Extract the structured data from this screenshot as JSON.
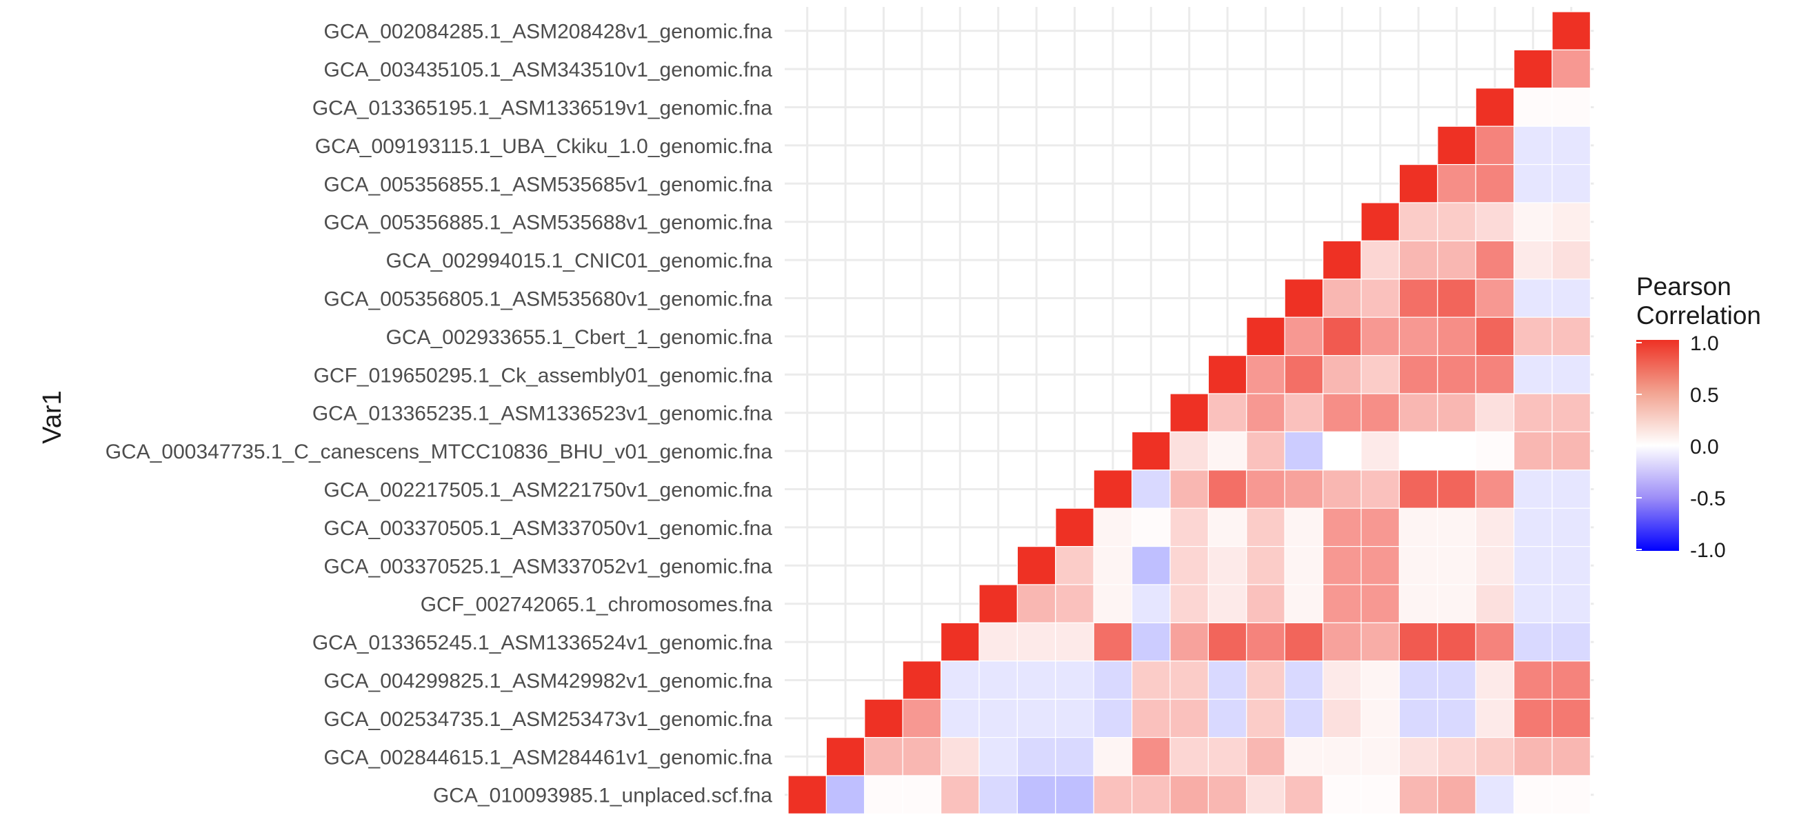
{
  "chart_data": {
    "type": "heatmap",
    "title": "",
    "xlabel": "",
    "ylabel": "Var1",
    "legend": {
      "title_lines": [
        "Pearson",
        "Correlation"
      ],
      "ticks": [
        1.0,
        0.5,
        0.0,
        -0.5,
        -1.0
      ],
      "tick_labels": [
        "1.0",
        "0.5",
        "0.0",
        "-0.5",
        "-1.0"
      ],
      "range": [
        -1,
        1
      ],
      "placement": "right",
      "colors": {
        "low": "#0000ff",
        "mid": "#ffffff",
        "high": "#ee3124"
      }
    },
    "grid": true,
    "rows_top_to_bottom": [
      "GCA_002084285.1_ASM208428v1_genomic.fna",
      "GCA_003435105.1_ASM343510v1_genomic.fna",
      "GCA_013365195.1_ASM1336519v1_genomic.fna",
      "GCA_009193115.1_UBA_Ckiku_1.0_genomic.fna",
      "GCA_005356855.1_ASM535685v1_genomic.fna",
      "GCA_005356885.1_ASM535688v1_genomic.fna",
      "GCA_002994015.1_CNIC01_genomic.fna",
      "GCA_005356805.1_ASM535680v1_genomic.fna",
      "GCA_002933655.1_Cbert_1_genomic.fna",
      "GCF_019650295.1_Ck_assembly01_genomic.fna",
      "GCA_013365235.1_ASM1336523v1_genomic.fna",
      "GCA_000347735.1_C_canescens_MTCC10836_BHU_v01_genomic.fna",
      "GCA_002217505.1_ASM221750v1_genomic.fna",
      "GCA_003370505.1_ASM337050v1_genomic.fna",
      "GCA_003370525.1_ASM337052v1_genomic.fna",
      "GCF_002742065.1_chromosomes.fna",
      "GCA_013365245.1_ASM1336524v1_genomic.fna",
      "GCA_004299825.1_ASM429982v1_genomic.fna",
      "GCA_002534735.1_ASM253473v1_genomic.fna",
      "GCA_002844615.1_ASM284461v1_genomic.fna",
      "GCA_010093985.1_unplaced.scf.fna"
    ],
    "values_top_to_bottom": [
      [
        1.0
      ],
      [
        1.0,
        0.5
      ],
      [
        1.0,
        0.02,
        0.02
      ],
      [
        1.0,
        0.6,
        -0.1,
        -0.1
      ],
      [
        1.0,
        0.55,
        0.6,
        -0.1,
        -0.1
      ],
      [
        1.0,
        0.25,
        0.25,
        0.18,
        0.05,
        0.08
      ],
      [
        1.0,
        0.2,
        0.35,
        0.35,
        0.6,
        0.1,
        0.15
      ],
      [
        1.0,
        0.35,
        0.3,
        0.7,
        0.75,
        0.5,
        -0.1,
        -0.1
      ],
      [
        1.0,
        0.5,
        0.8,
        0.5,
        0.5,
        0.55,
        0.75,
        0.3,
        0.3
      ],
      [
        1.0,
        0.5,
        0.7,
        0.35,
        0.25,
        0.6,
        0.6,
        0.6,
        -0.1,
        -0.1
      ],
      [
        1.0,
        0.3,
        0.5,
        0.3,
        0.55,
        0.55,
        0.35,
        0.35,
        0.15,
        0.3,
        0.3
      ],
      [
        1.0,
        0.15,
        0.05,
        0.3,
        -0.2,
        0.0,
        0.1,
        0.0,
        0.0,
        0.02,
        0.35,
        0.35
      ],
      [
        1.0,
        -0.15,
        0.35,
        0.7,
        0.5,
        0.45,
        0.35,
        0.3,
        0.75,
        0.75,
        0.55,
        -0.1,
        -0.1
      ],
      [
        1.0,
        0.05,
        0.02,
        0.2,
        0.05,
        0.25,
        0.05,
        0.5,
        0.5,
        0.05,
        0.05,
        0.1,
        -0.1,
        -0.1
      ],
      [
        1.0,
        0.25,
        0.05,
        -0.25,
        0.2,
        0.1,
        0.25,
        0.05,
        0.5,
        0.5,
        0.05,
        0.05,
        0.1,
        -0.1,
        -0.1
      ],
      [
        1.0,
        0.35,
        0.3,
        0.05,
        -0.1,
        0.2,
        0.1,
        0.3,
        0.05,
        0.5,
        0.5,
        0.05,
        0.05,
        0.15,
        -0.1,
        -0.1
      ],
      [
        1.0,
        0.1,
        0.1,
        0.1,
        0.7,
        -0.2,
        0.45,
        0.75,
        0.6,
        0.75,
        0.45,
        0.4,
        0.8,
        0.8,
        0.6,
        -0.15,
        -0.15
      ],
      [
        1.0,
        -0.1,
        -0.1,
        -0.1,
        -0.1,
        -0.15,
        0.25,
        0.25,
        -0.15,
        0.25,
        -0.15,
        0.1,
        0.05,
        -0.15,
        -0.15,
        0.1,
        0.6,
        0.6
      ],
      [
        1.0,
        0.5,
        -0.1,
        -0.1,
        -0.1,
        -0.1,
        -0.15,
        0.3,
        0.3,
        -0.15,
        0.25,
        -0.15,
        0.15,
        0.05,
        -0.15,
        -0.15,
        0.1,
        0.65,
        0.65
      ],
      [
        1.0,
        0.35,
        0.35,
        0.15,
        -0.1,
        -0.15,
        -0.15,
        0.05,
        0.55,
        0.2,
        0.2,
        0.35,
        0.05,
        0.05,
        0.05,
        0.15,
        0.2,
        0.25,
        0.35,
        0.35
      ],
      [
        1.0,
        -0.25,
        0.02,
        0.02,
        0.3,
        -0.15,
        -0.25,
        -0.25,
        0.3,
        0.3,
        0.4,
        0.35,
        0.15,
        0.3,
        0.02,
        0.02,
        0.35,
        0.4,
        -0.1,
        0.02,
        0.02
      ]
    ]
  }
}
